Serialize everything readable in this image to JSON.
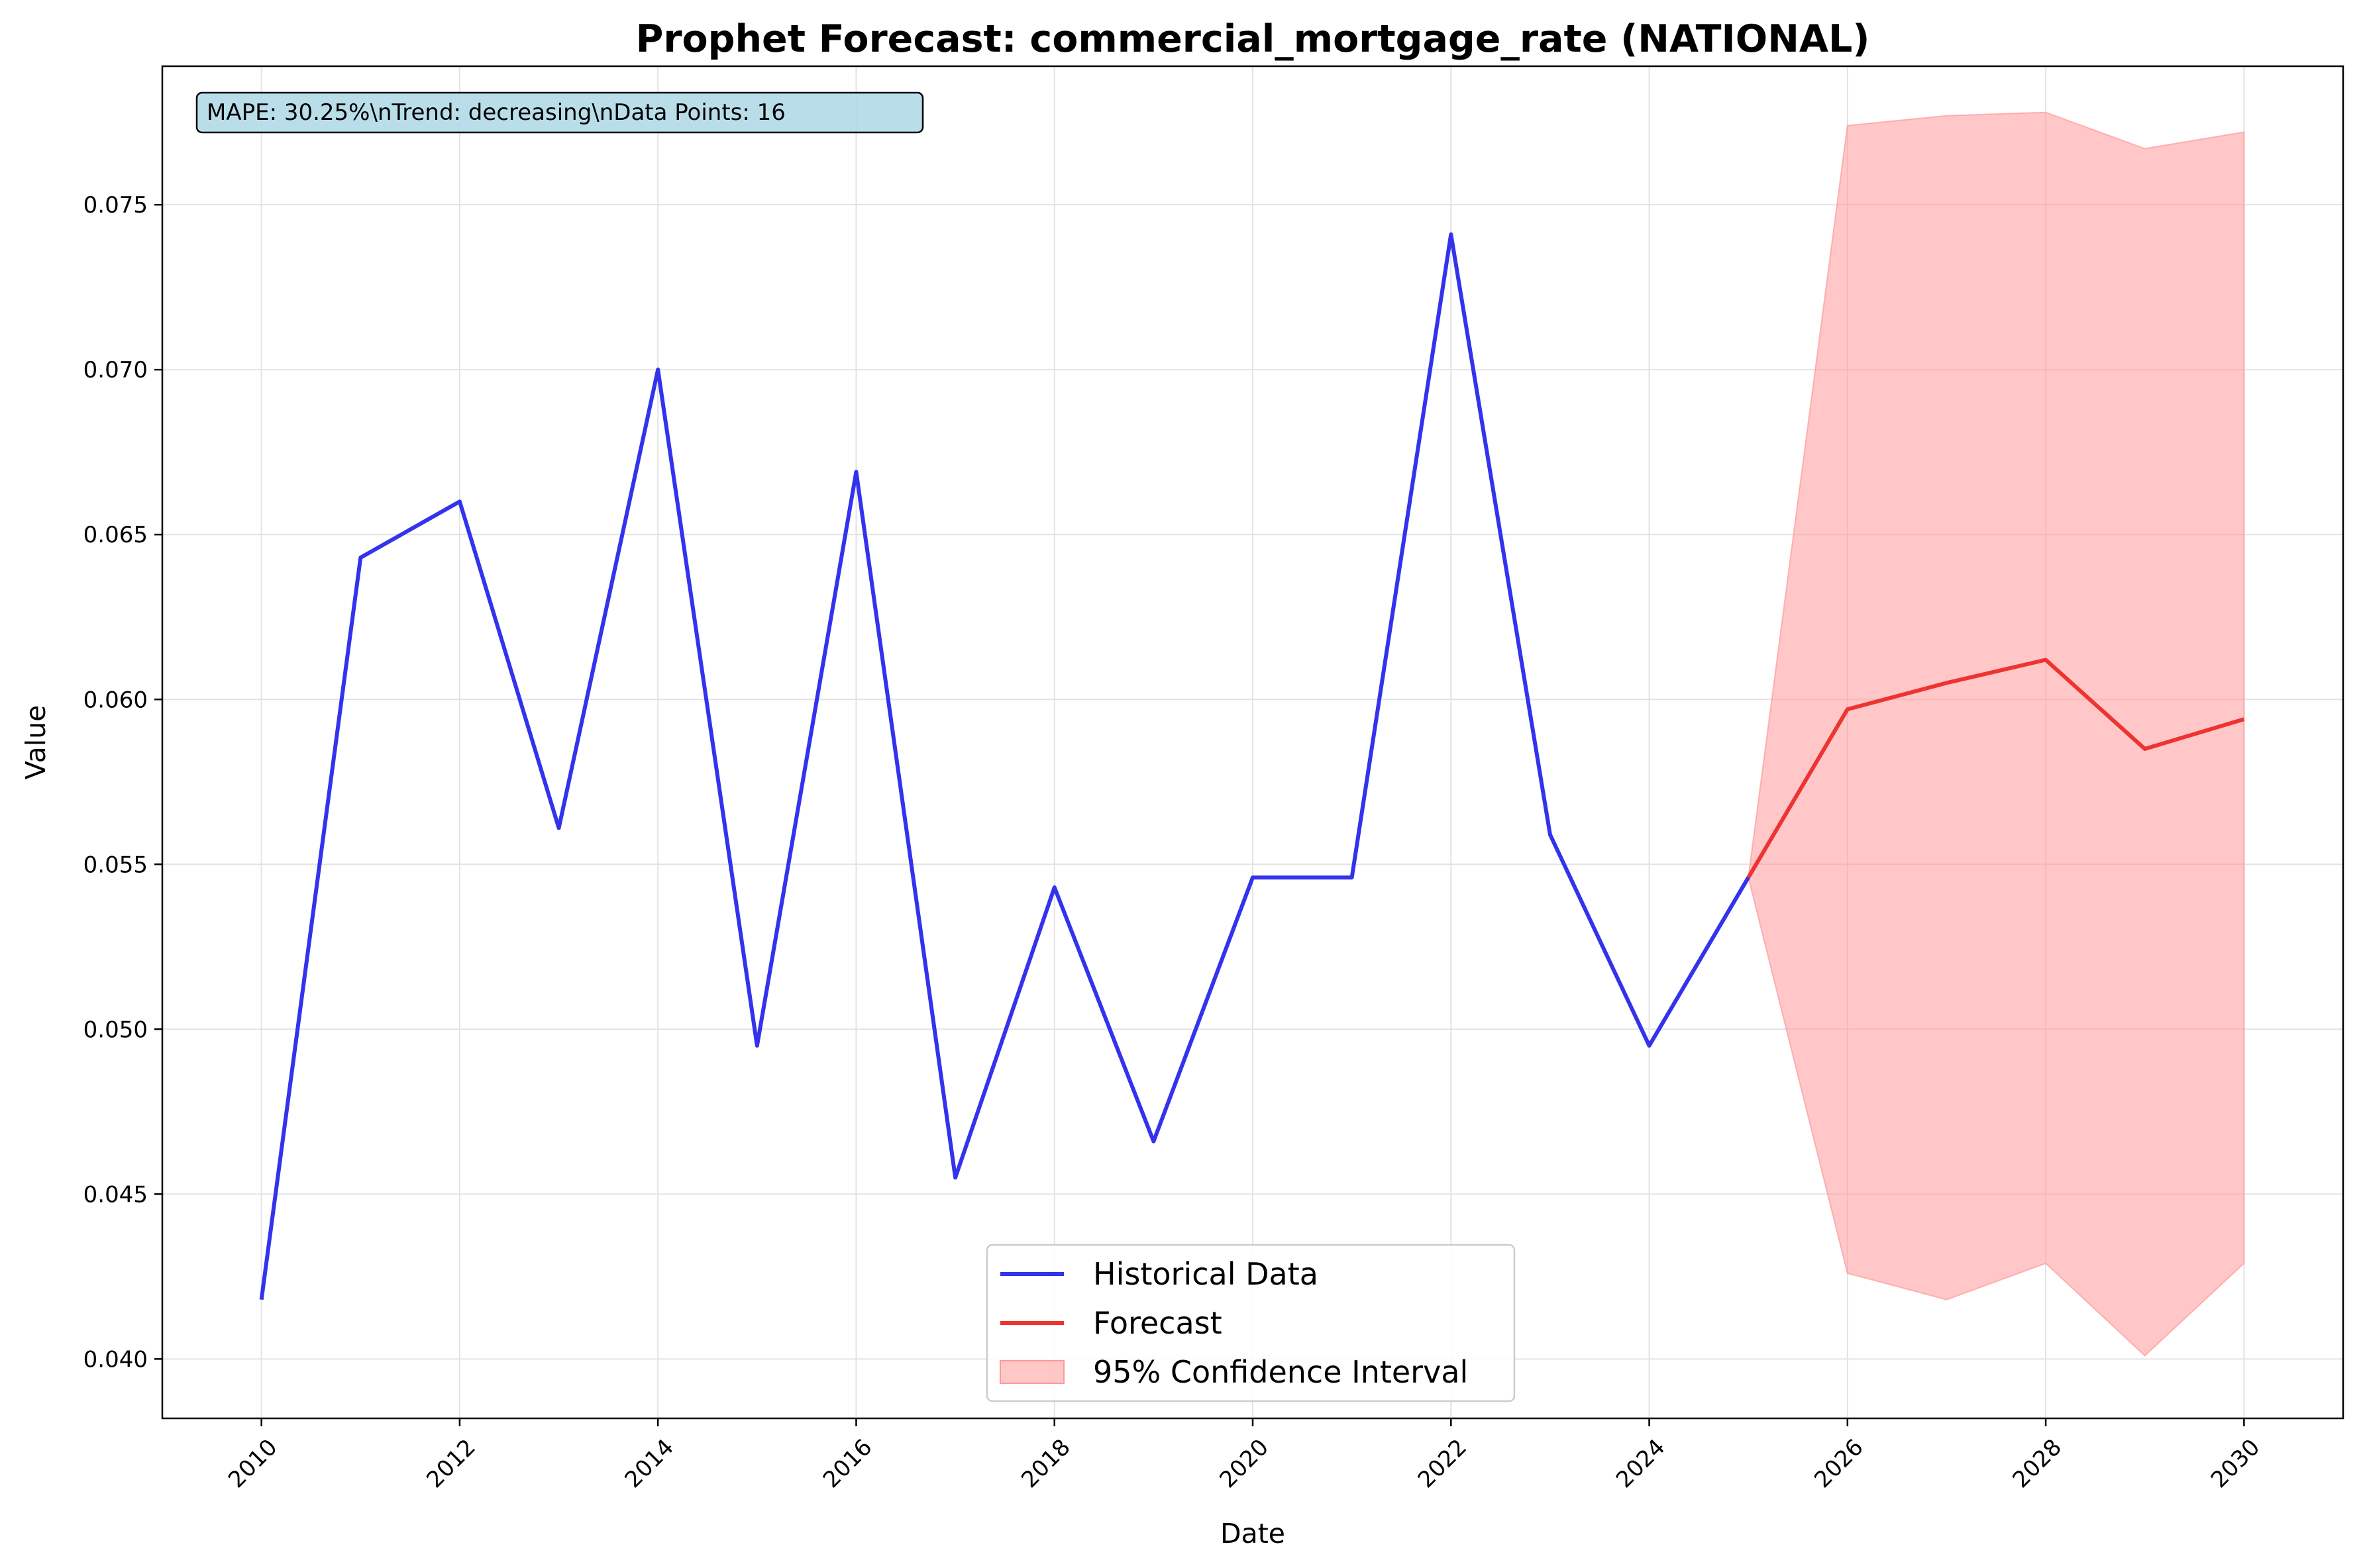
{
  "chart_data": {
    "type": "line",
    "title": "Prophet Forecast: commercial_mortgage_rate (NATIONAL)",
    "xlabel": "Date",
    "ylabel": "Value",
    "xlim": [
      2009,
      2031
    ],
    "ylim": [
      0.0382,
      0.0792
    ],
    "x_ticks": [
      "2010",
      "2012",
      "2014",
      "2016",
      "2018",
      "2020",
      "2022",
      "2024",
      "2026",
      "2028",
      "2030"
    ],
    "y_ticks": [
      "0.040",
      "0.045",
      "0.050",
      "0.055",
      "0.060",
      "0.065",
      "0.070",
      "0.075"
    ],
    "grid": true,
    "legend_position": "bottom-center",
    "stats_box": "MAPE: 30.25%\\nTrend: decreasing\\nData Points: 16",
    "series": [
      {
        "name": "Historical Data",
        "color": "#3333ee",
        "x": [
          2010,
          2011,
          2012,
          2013,
          2014,
          2015,
          2016,
          2017,
          2018,
          2019,
          2020,
          2021,
          2022,
          2023,
          2024,
          2025
        ],
        "values": [
          0.0418,
          0.0643,
          0.066,
          0.0561,
          0.07,
          0.0495,
          0.0669,
          0.0455,
          0.0543,
          0.0466,
          0.0546,
          0.0546,
          0.0741,
          0.0559,
          0.0495,
          0.0546
        ]
      },
      {
        "name": "Forecast",
        "color": "#ee3333",
        "x": [
          2025,
          2026,
          2027,
          2028,
          2029,
          2030
        ],
        "values": [
          0.0546,
          0.0597,
          0.0605,
          0.0612,
          0.0585,
          0.0594
        ]
      }
    ],
    "confidence_interval": {
      "name": "95% Confidence Interval",
      "color": "#ff9999",
      "x": [
        2025,
        2026,
        2027,
        2028,
        2029,
        2030
      ],
      "lower": [
        0.0546,
        0.0426,
        0.0418,
        0.0429,
        0.0401,
        0.0429
      ],
      "upper": [
        0.0546,
        0.0774,
        0.0777,
        0.0778,
        0.0767,
        0.0772
      ]
    }
  }
}
